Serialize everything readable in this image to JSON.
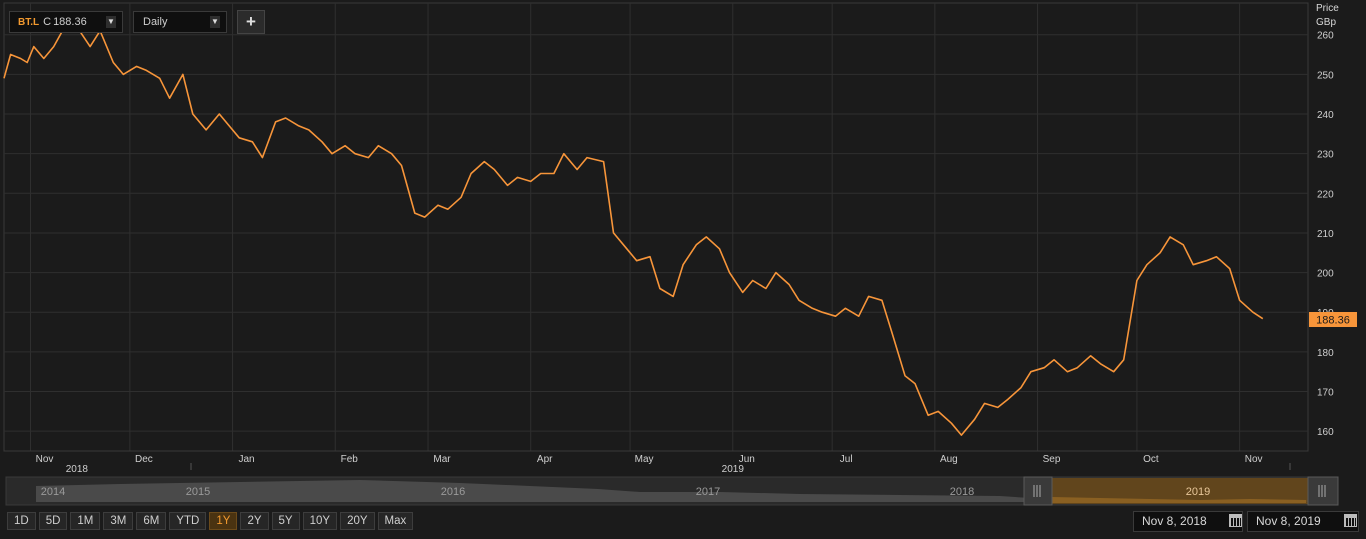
{
  "toolbar": {
    "ric": "BT.L",
    "last_label": "C",
    "last_value": "188.36",
    "interval": "Daily",
    "add_label": "+"
  },
  "axis": {
    "title_line1": "Price",
    "title_line2": "GBp",
    "last_price_tag": "188.36"
  },
  "range_buttons": [
    "1D",
    "5D",
    "1M",
    "3M",
    "6M",
    "YTD",
    "1Y",
    "2Y",
    "5Y",
    "10Y",
    "20Y",
    "Max"
  ],
  "active_range": "1Y",
  "date_range": {
    "from": "Nov 8, 2018",
    "to": "Nov 8, 2019"
  },
  "navigator": {
    "years": [
      "2014",
      "2015",
      "2016",
      "2017",
      "2018",
      "2019"
    ]
  },
  "colors": {
    "line": "#f7953a",
    "background": "#1b1b1b",
    "grid": "#2f2f2f",
    "accent": "#f39a2f"
  },
  "chart_data": {
    "type": "line",
    "title": "",
    "xlabel": "",
    "ylabel": "Price GBp",
    "ylim": [
      155,
      268
    ],
    "y_ticks": [
      160,
      170,
      180,
      190,
      200,
      210,
      220,
      230,
      240,
      250,
      260
    ],
    "grid": true,
    "x_tick_labels": [
      {
        "label": "Nov",
        "date": "2018-11-01"
      },
      {
        "label": "Dec",
        "date": "2018-12-01"
      },
      {
        "label": "Jan",
        "date": "2019-01-01"
      },
      {
        "label": "Feb",
        "date": "2019-02-01"
      },
      {
        "label": "Mar",
        "date": "2019-03-01"
      },
      {
        "label": "Apr",
        "date": "2019-04-01"
      },
      {
        "label": "May",
        "date": "2019-05-01"
      },
      {
        "label": "Jun",
        "date": "2019-06-01"
      },
      {
        "label": "Jul",
        "date": "2019-07-01"
      },
      {
        "label": "Aug",
        "date": "2019-08-01"
      },
      {
        "label": "Sep",
        "date": "2019-09-01"
      },
      {
        "label": "Oct",
        "date": "2019-10-01"
      },
      {
        "label": "Nov",
        "date": "2019-11-01"
      }
    ],
    "x_year_labels": [
      {
        "label": "2018",
        "date": "2018-11-15"
      },
      {
        "label": "2019",
        "date": "2019-06-01"
      }
    ],
    "series": [
      {
        "x": [
          "2018-10-24",
          "2018-10-26",
          "2018-10-29",
          "2018-10-31",
          "2018-11-02",
          "2018-11-05",
          "2018-11-08",
          "2018-11-12",
          "2018-11-15",
          "2018-11-19",
          "2018-11-22",
          "2018-11-26",
          "2018-11-29",
          "2018-12-03",
          "2018-12-06",
          "2018-12-10",
          "2018-12-13",
          "2018-12-17",
          "2018-12-20",
          "2018-12-24",
          "2018-12-28",
          "2019-01-03",
          "2019-01-07",
          "2019-01-10",
          "2019-01-14",
          "2019-01-17",
          "2019-01-21",
          "2019-01-24",
          "2019-01-28",
          "2019-01-31",
          "2019-02-04",
          "2019-02-07",
          "2019-02-11",
          "2019-02-14",
          "2019-02-18",
          "2019-02-21",
          "2019-02-25",
          "2019-02-28",
          "2019-03-04",
          "2019-03-07",
          "2019-03-11",
          "2019-03-14",
          "2019-03-18",
          "2019-03-21",
          "2019-03-25",
          "2019-03-28",
          "2019-04-01",
          "2019-04-04",
          "2019-04-08",
          "2019-04-11",
          "2019-04-15",
          "2019-04-18",
          "2019-04-23",
          "2019-04-26",
          "2019-04-30",
          "2019-05-03",
          "2019-05-07",
          "2019-05-10",
          "2019-05-14",
          "2019-05-17",
          "2019-05-21",
          "2019-05-24",
          "2019-05-28",
          "2019-05-31",
          "2019-06-04",
          "2019-06-07",
          "2019-06-11",
          "2019-06-14",
          "2019-06-18",
          "2019-06-21",
          "2019-06-25",
          "2019-06-28",
          "2019-07-02",
          "2019-07-05",
          "2019-07-09",
          "2019-07-12",
          "2019-07-16",
          "2019-07-19",
          "2019-07-23",
          "2019-07-26",
          "2019-07-30",
          "2019-08-02",
          "2019-08-06",
          "2019-08-09",
          "2019-08-13",
          "2019-08-16",
          "2019-08-20",
          "2019-08-23",
          "2019-08-27",
          "2019-08-30",
          "2019-09-03",
          "2019-09-06",
          "2019-09-10",
          "2019-09-13",
          "2019-09-17",
          "2019-09-20",
          "2019-09-24",
          "2019-09-27",
          "2019-10-01",
          "2019-10-04",
          "2019-10-08",
          "2019-10-11",
          "2019-10-15",
          "2019-10-18",
          "2019-10-22",
          "2019-10-25",
          "2019-10-29",
          "2019-11-01",
          "2019-11-05",
          "2019-11-08"
        ],
        "values": [
          249,
          255,
          254,
          253,
          257,
          254,
          257,
          263,
          262,
          257,
          261,
          253,
          250,
          252,
          251,
          249,
          244,
          250,
          240,
          236,
          240,
          234,
          233,
          229,
          238,
          239,
          237,
          236,
          233,
          230,
          232,
          230,
          229,
          232,
          230,
          227,
          215,
          214,
          217,
          216,
          219,
          225,
          228,
          226,
          222,
          224,
          223,
          225,
          225,
          230,
          226,
          229,
          228,
          210,
          206,
          203,
          204,
          196,
          194,
          202,
          207,
          209,
          206,
          200,
          195,
          198,
          196,
          200,
          197,
          193,
          191,
          190,
          189,
          191,
          189,
          194,
          193,
          185,
          174,
          172,
          164,
          165,
          162,
          159,
          163,
          167,
          166,
          168,
          171,
          175,
          176,
          178,
          175,
          176,
          179,
          177,
          175,
          178,
          198,
          202,
          205,
          209,
          207,
          202,
          203,
          204,
          201,
          193,
          190,
          188.36
        ]
      }
    ]
  }
}
